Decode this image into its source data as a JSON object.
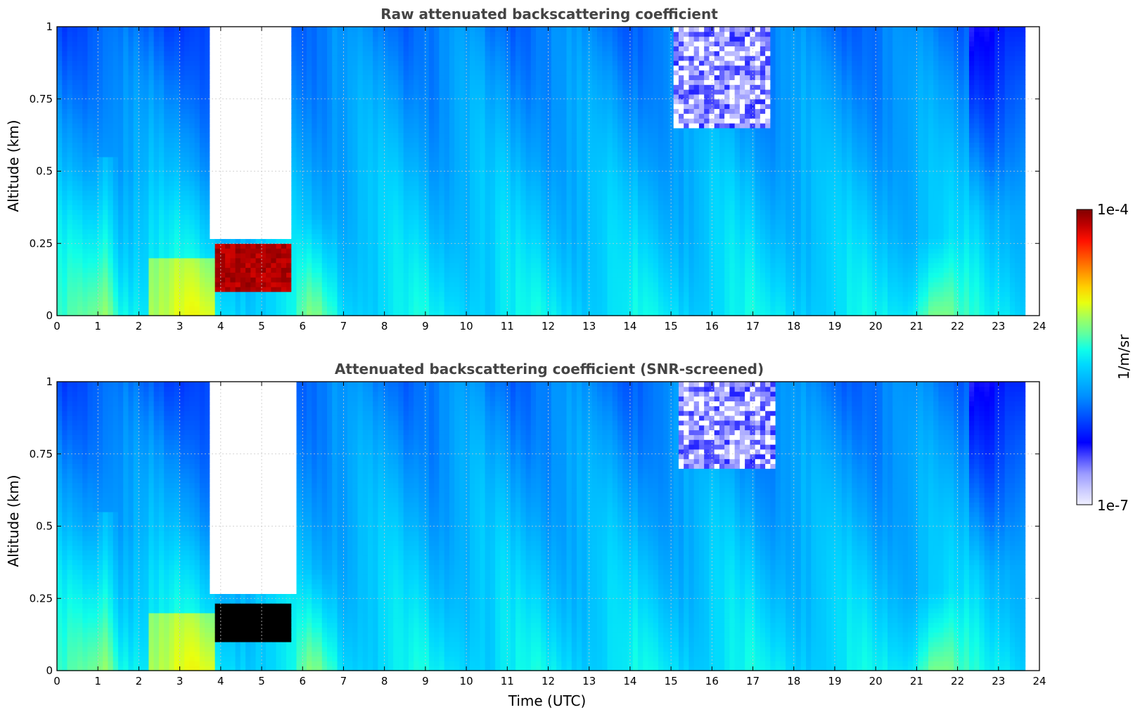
{
  "chart_data": [
    {
      "type": "heatmap",
      "title": "Raw attenuated backscattering coefficient",
      "xlabel": "",
      "ylabel": "Altitude (km)",
      "xlim": [
        0,
        24
      ],
      "ylim": [
        0,
        1
      ],
      "xticks": [
        "0",
        "1",
        "2",
        "3",
        "4",
        "5",
        "6",
        "7",
        "8",
        "9",
        "10",
        "11",
        "12",
        "13",
        "14",
        "15",
        "16",
        "17",
        "18",
        "19",
        "20",
        "21",
        "22",
        "23",
        "24"
      ],
      "yticks": [
        "0",
        "0.25",
        "0.5",
        "0.75",
        "1"
      ],
      "data_end_time": 23.65,
      "grid": true,
      "features": [
        {
          "name": "missing",
          "x": [
            3.75,
            5.75
          ],
          "y": [
            0.27,
            1.0
          ]
        },
        {
          "name": "strong",
          "x": [
            3.8,
            5.7
          ],
          "y": [
            0.09,
            0.25
          ]
        },
        {
          "name": "noisy-top",
          "x": [
            15.0,
            17.4
          ],
          "y": [
            0.65,
            1.0
          ]
        },
        {
          "name": "aerosol",
          "x": [
            20.5,
            22.5
          ],
          "y": [
            0.0,
            0.28
          ]
        }
      ]
    },
    {
      "type": "heatmap",
      "title": "Attenuated backscattering coefficient (SNR-screened)",
      "xlabel": "Time (UTC)",
      "ylabel": "Altitude (km)",
      "xlim": [
        0,
        24
      ],
      "ylim": [
        0,
        1
      ],
      "xticks": [
        "0",
        "1",
        "2",
        "3",
        "4",
        "5",
        "6",
        "7",
        "8",
        "9",
        "10",
        "11",
        "12",
        "13",
        "14",
        "15",
        "16",
        "17",
        "18",
        "19",
        "20",
        "21",
        "22",
        "23",
        "24"
      ],
      "yticks": [
        "0",
        "0.25",
        "0.5",
        "0.75",
        "1"
      ],
      "data_end_time": 23.65,
      "grid": true,
      "features": [
        {
          "name": "missing",
          "x": [
            3.75,
            5.8
          ],
          "y": [
            0.27,
            1.0
          ]
        },
        {
          "name": "strong",
          "x": [
            3.8,
            5.7
          ],
          "y": [
            0.1,
            0.23
          ]
        },
        {
          "name": "noisy-top",
          "x": [
            15.2,
            17.5
          ],
          "y": [
            0.7,
            1.0
          ]
        },
        {
          "name": "aerosol",
          "x": [
            20.5,
            22.5
          ],
          "y": [
            0.0,
            0.28
          ]
        }
      ]
    }
  ],
  "colorbar": {
    "max_label": "1e-4",
    "min_label": "1e-7",
    "unit_label": "1/m/sr",
    "colors": [
      "#efefff",
      "#c8c8ff",
      "#9a9aff",
      "#5050ff",
      "#0000ff",
      "#0030ff",
      "#0060ff",
      "#0090ff",
      "#00b4ff",
      "#00d8ff",
      "#10ffe8",
      "#60ffa0",
      "#a0ff60",
      "#e8ff10",
      "#ffd000",
      "#ff9000",
      "#ff5000",
      "#ff1000",
      "#c00000",
      "#800000"
    ]
  }
}
